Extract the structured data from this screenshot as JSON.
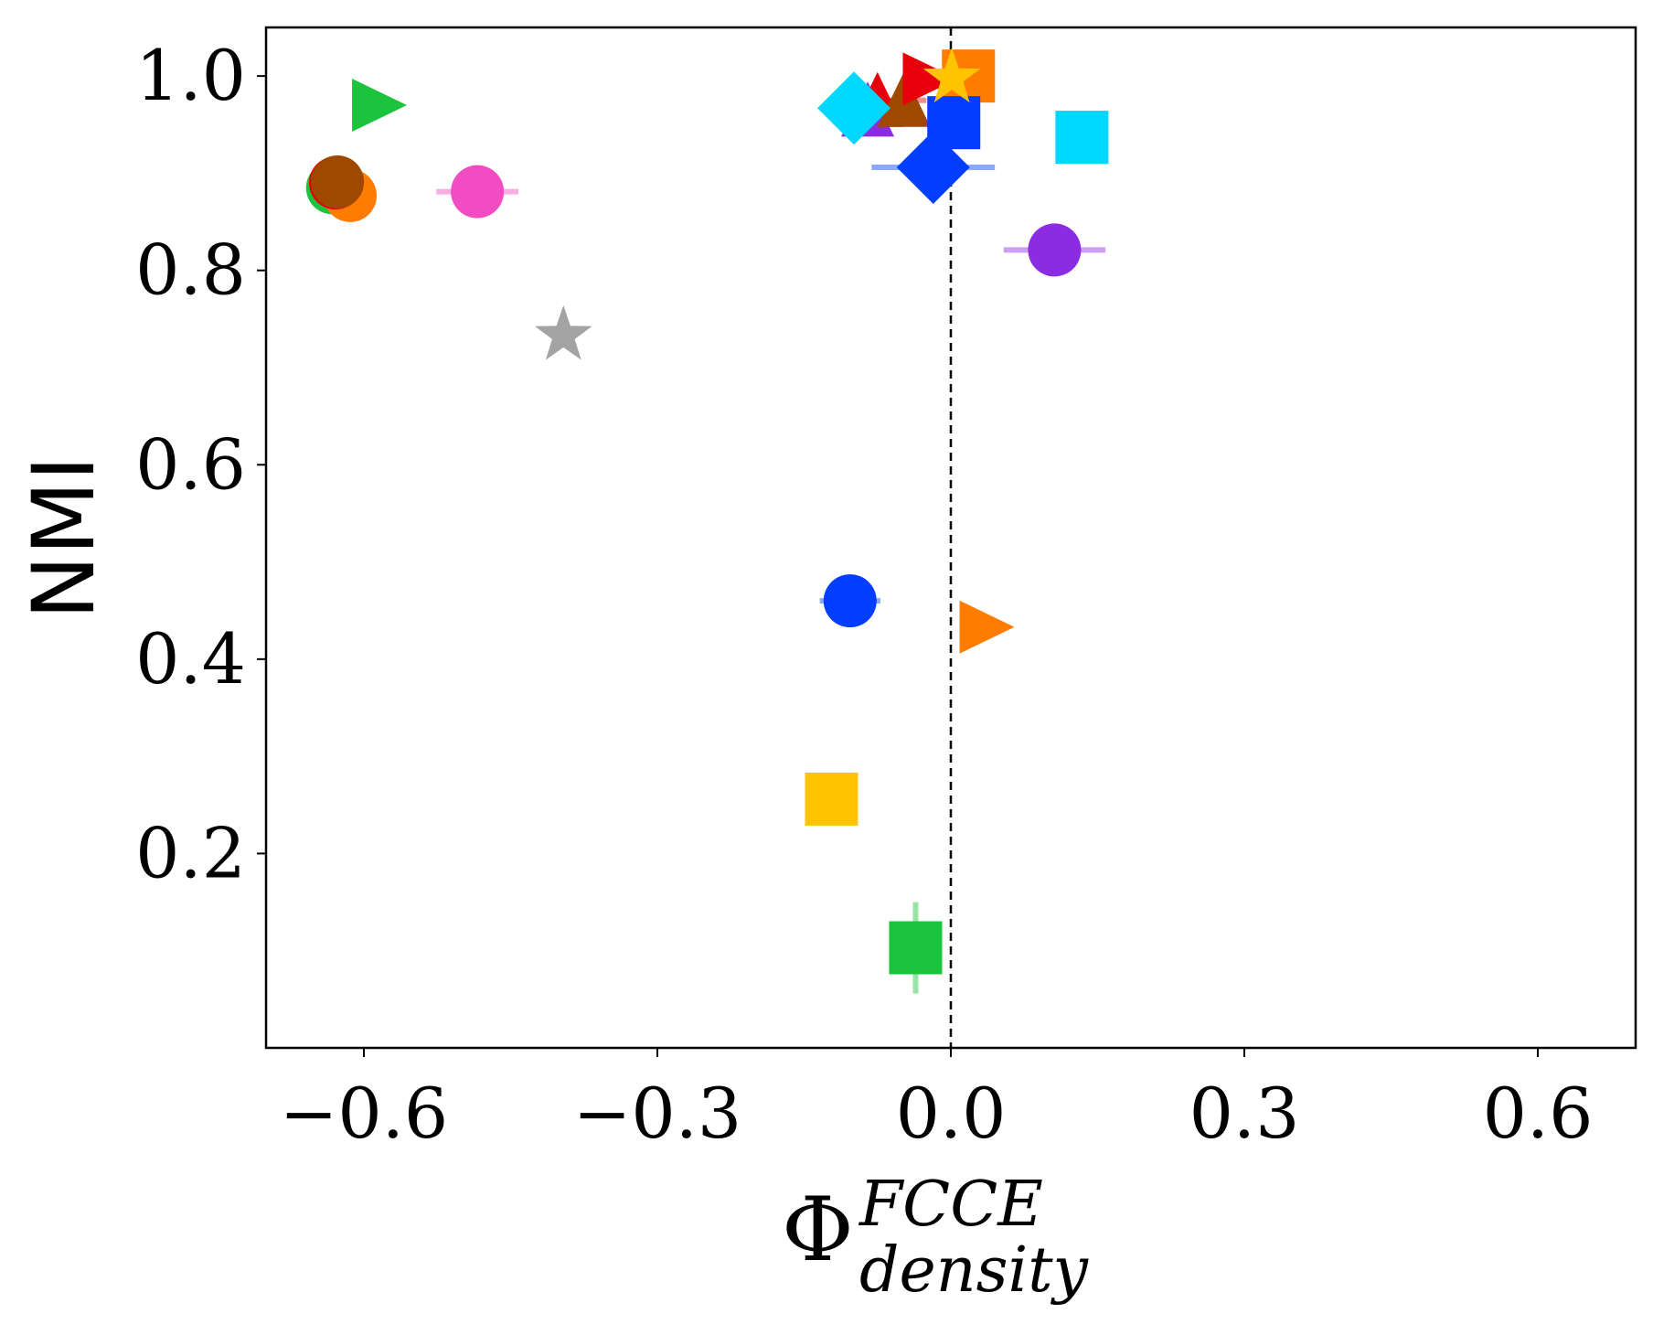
{
  "chart_data": {
    "type": "scatter",
    "title": "",
    "xlabel": {
      "symbol": "Φ",
      "superscript": "FCCE",
      "subscript": "density"
    },
    "ylabel": "NMI",
    "xlim": [
      -0.7,
      0.7
    ],
    "ylim": [
      0.0,
      1.05
    ],
    "xticks": [
      -0.6,
      -0.3,
      0.0,
      0.3,
      0.6
    ],
    "xtick_labels": [
      "−0.6",
      "−0.3",
      "0.0",
      "0.3",
      "0.6"
    ],
    "yticks": [
      0.2,
      0.4,
      0.6,
      0.8,
      1.0
    ],
    "ytick_labels": [
      "0.2",
      "0.4",
      "0.6",
      "0.8",
      "1.0"
    ],
    "reference_line": {
      "x": 0.0,
      "style": "dashed",
      "color": "#000000"
    },
    "grid": false,
    "points": [
      {
        "name": "green-triangle",
        "shape": "triangle-right",
        "color": "#1bc43c",
        "x": -0.585,
        "y": 0.97,
        "xerr": 0,
        "yerr": 0
      },
      {
        "name": "green-circle",
        "shape": "circle",
        "color": "#1bc43c",
        "x": -0.632,
        "y": 0.885,
        "xerr": 0,
        "yerr": 0
      },
      {
        "name": "orange-circle",
        "shape": "circle",
        "color": "#ff7c00",
        "x": -0.614,
        "y": 0.877,
        "xerr": 0,
        "yerr": 0
      },
      {
        "name": "red-circle",
        "shape": "circle",
        "color": "#e8000b",
        "x": -0.629,
        "y": 0.89,
        "xerr": 0,
        "yerr": 0
      },
      {
        "name": "brown-circle",
        "shape": "circle",
        "color": "#9f4800",
        "x": -0.627,
        "y": 0.891,
        "xerr": 0,
        "yerr": 0
      },
      {
        "name": "pink-circle",
        "shape": "circle",
        "color": "#f14cc1",
        "x": -0.484,
        "y": 0.881,
        "xerr": 0.042,
        "yerr": 0
      },
      {
        "name": "gray-star",
        "shape": "star",
        "color": "#a3a3a3",
        "x": -0.396,
        "y": 0.733,
        "xerr": 0,
        "yerr": 0
      },
      {
        "name": "purple-circle",
        "shape": "circle",
        "color": "#8b2be2",
        "x": 0.106,
        "y": 0.821,
        "xerr": 0.052,
        "yerr": 0
      },
      {
        "name": "cyan-square",
        "shape": "square",
        "color": "#00d7ff",
        "x": 0.134,
        "y": 0.937,
        "xerr": 0,
        "yerr": 0
      },
      {
        "name": "blue-circle",
        "shape": "circle",
        "color": "#023eff",
        "x": -0.103,
        "y": 0.46,
        "xerr": 0.031,
        "yerr": 0
      },
      {
        "name": "orange-triangle",
        "shape": "triangle-right",
        "color": "#ff7c00",
        "x": 0.036,
        "y": 0.433,
        "xerr": 0,
        "yerr": 0
      },
      {
        "name": "yellow-square",
        "shape": "square",
        "color": "#ffc400",
        "x": -0.122,
        "y": 0.256,
        "xerr": 0,
        "yerr": 0
      },
      {
        "name": "green-square",
        "shape": "square",
        "color": "#1bc43c",
        "x": -0.036,
        "y": 0.103,
        "xerr": 0,
        "yerr": 0.047
      },
      {
        "name": "red-triangle-up",
        "shape": "triangle-up",
        "color": "#e8000b",
        "x": -0.075,
        "y": 0.975,
        "xerr": 0.05,
        "yerr": 0
      },
      {
        "name": "purple-triangle-up",
        "shape": "triangle-up",
        "color": "#8b2be2",
        "x": -0.085,
        "y": 0.965,
        "xerr": 0,
        "yerr": 0
      },
      {
        "name": "brown-triangle-up",
        "shape": "triangle-up",
        "color": "#9f4800",
        "x": -0.048,
        "y": 0.975,
        "xerr": 0,
        "yerr": 0
      },
      {
        "name": "orange-square",
        "shape": "square",
        "color": "#ff7c00",
        "x": 0.018,
        "y": 1.0,
        "xerr": 0,
        "yerr": 0
      },
      {
        "name": "red-triangle-right",
        "shape": "triangle-right",
        "color": "#e8000b",
        "x": -0.022,
        "y": 0.997,
        "xerr": 0,
        "yerr": 0
      },
      {
        "name": "blue-square",
        "shape": "square",
        "color": "#023eff",
        "x": 0.003,
        "y": 0.952,
        "xerr": 0,
        "yerr": 0
      },
      {
        "name": "blue-diamond",
        "shape": "diamond",
        "color": "#023eff",
        "x": -0.018,
        "y": 0.906,
        "xerr": 0.063,
        "yerr": 0
      },
      {
        "name": "cyan-diamond",
        "shape": "diamond",
        "color": "#00d7ff",
        "x": -0.099,
        "y": 0.967,
        "xerr": 0,
        "yerr": 0
      },
      {
        "name": "yellow-star",
        "shape": "star",
        "color": "#ffc400",
        "x": 0.001,
        "y": 0.998,
        "xerr": 0,
        "yerr": 0
      }
    ]
  }
}
